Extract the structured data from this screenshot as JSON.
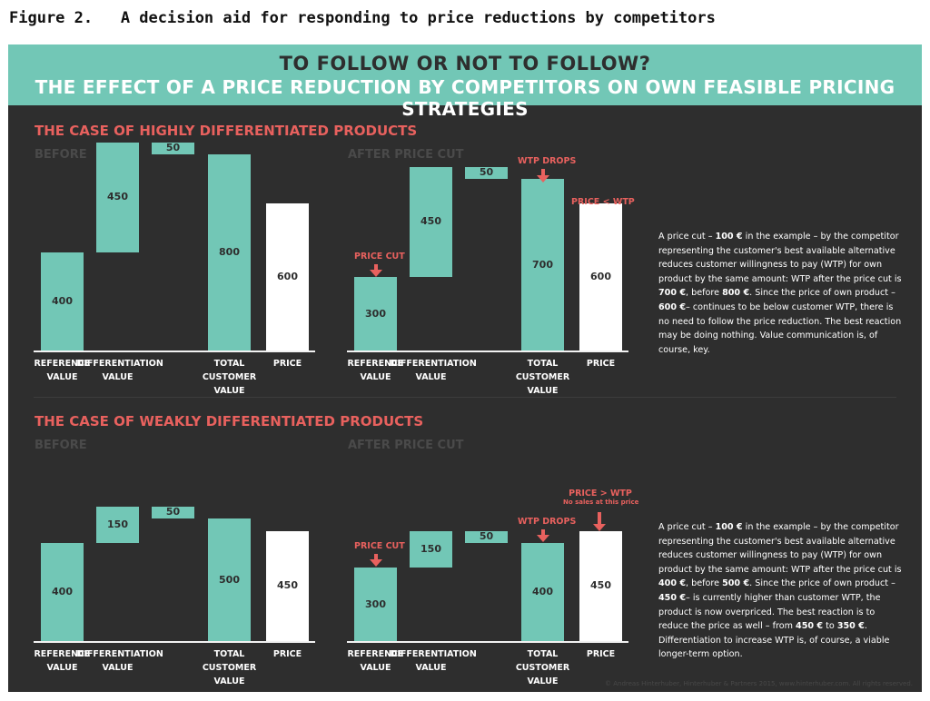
{
  "figure_caption": "Figure 2.   A decision aid for responding to price reductions by competitors",
  "banner": {
    "line1": "TO FOLLOW OR NOT TO FOLLOW?",
    "line2": "THE EFFECT OF A PRICE REDUCTION BY COMPETITORS ON OWN FEASIBLE PRICING STRATEGIES"
  },
  "colors": {
    "teal": "#72c7b6",
    "red": "#e8615e",
    "panel": "#2e2e2e",
    "white": "#ffffff"
  },
  "labels": {
    "before": "BEFORE",
    "after": "AFTER PRICE CUT",
    "price_cut": "PRICE CUT",
    "wtp_drops": "WTP DROPS",
    "price_lt_wtp": "PRICE < WTP",
    "price_gt_wtp": "PRICE > WTP",
    "no_sales": "No sales at this price"
  },
  "x_labels": [
    [
      "REFERENCE",
      "VALUE"
    ],
    [
      "DIFFERENTIATION",
      "VALUE"
    ],
    [
      "TOTAL CUSTOMER",
      "VALUE"
    ],
    [
      "PRICE",
      ""
    ]
  ],
  "chart_data": [
    {
      "type": "bar",
      "title": "THE CASE OF HIGHLY DIFFERENTIATED PRODUCTS",
      "subtitle": "BEFORE",
      "categories": [
        "REFERENCE VALUE",
        "DIFFERENTIATION VALUE",
        "",
        "TOTAL CUSTOMER VALUE",
        "PRICE"
      ],
      "values": [
        400,
        450,
        50,
        800,
        600
      ],
      "value_labels": [
        "400",
        "450",
        "50",
        "800",
        "600"
      ]
    },
    {
      "type": "bar",
      "title": "",
      "subtitle": "AFTER PRICE CUT",
      "categories": [
        "REFERENCE VALUE",
        "DIFFERENTIATION VALUE",
        "",
        "TOTAL CUSTOMER VALUE",
        "PRICE"
      ],
      "values": [
        300,
        450,
        50,
        700,
        600
      ],
      "value_labels": [
        "300",
        "450",
        "50",
        "700",
        "600"
      ]
    },
    {
      "type": "bar",
      "title": "THE CASE OF WEAKLY DIFFERENTIATED PRODUCTS",
      "subtitle": "BEFORE",
      "categories": [
        "REFERENCE VALUE",
        "DIFFERENTIATION VALUE",
        "",
        "TOTAL CUSTOMER VALUE",
        "PRICE"
      ],
      "values": [
        400,
        150,
        50,
        500,
        450
      ],
      "value_labels": [
        "400",
        "150",
        "50",
        "500",
        "450"
      ]
    },
    {
      "type": "bar",
      "title": "",
      "subtitle": "AFTER PRICE CUT",
      "categories": [
        "REFERENCE VALUE",
        "DIFFERENTIATION VALUE",
        "",
        "TOTAL CUSTOMER VALUE",
        "PRICE"
      ],
      "values": [
        300,
        150,
        50,
        400,
        450
      ],
      "value_labels": [
        "300",
        "150",
        "50",
        "400",
        "450"
      ]
    }
  ],
  "desc_high": [
    {
      "t": "A price cut – "
    },
    {
      "t": "100 €",
      "b": true
    },
    {
      "t": " in the example – by the competitor representing the customer's best available alternative reduces customer willingness to pay (WTP) for own product by the same amount: WTP after the price cut is "
    },
    {
      "t": "700 €",
      "b": true
    },
    {
      "t": ", before "
    },
    {
      "t": "800 €",
      "b": true
    },
    {
      "t": ". Since the price of own product – "
    },
    {
      "t": "600 €",
      "b": true
    },
    {
      "t": "– continues to be below customer WTP, there is no need to follow the price reduction. The best reaction may be doing nothing. Value communication is, of course, key."
    }
  ],
  "desc_weak": [
    {
      "t": "A price cut – "
    },
    {
      "t": "100 €",
      "b": true
    },
    {
      "t": " in the example – by the competitor representing the customer's best available alternative reduces customer willingness to pay (WTP) for own product by the same amount: WTP after the price cut is "
    },
    {
      "t": "400 €",
      "b": true
    },
    {
      "t": ", before "
    },
    {
      "t": "500 €",
      "b": true
    },
    {
      "t": ". Since the price of own product – "
    },
    {
      "t": "450 €",
      "b": true
    },
    {
      "t": "– is currently higher than customer WTP, the product is now overpriced. The best reaction is to reduce the price as well – from "
    },
    {
      "t": "450 €",
      "b": true
    },
    {
      "t": " to "
    },
    {
      "t": "350 €",
      "b": true
    },
    {
      "t": ". Differentiation to increase WTP is, of course, a viable longer-term option."
    }
  ],
  "copyright": "© Andreas Hinterhuber, Hinterhuber & Partners 2015, www.hinterhuber.com. All rights reserved."
}
